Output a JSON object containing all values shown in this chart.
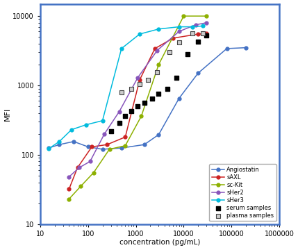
{
  "title": "",
  "xlabel": "concentration (pg/mL)",
  "ylabel": "MFI",
  "xlim": [
    10,
    1000000
  ],
  "ylim": [
    10,
    15000
  ],
  "background_color": "#ffffff",
  "border_color": "#4472C4",
  "curves": {
    "Angiostatin": {
      "color": "#4472C4",
      "marker": "o",
      "x": [
        15,
        25,
        50,
        100,
        200,
        500,
        1500,
        3000,
        8000,
        20000,
        80000,
        200000
      ],
      "y": [
        125,
        140,
        155,
        130,
        120,
        125,
        140,
        195,
        650,
        1500,
        3400,
        3500
      ]
    },
    "sAXL": {
      "color": "#CC2222",
      "marker": "o",
      "x": [
        40,
        60,
        120,
        250,
        600,
        1200,
        2500,
        6000,
        20000,
        30000
      ],
      "y": [
        32,
        65,
        130,
        140,
        180,
        1200,
        3400,
        4800,
        5500,
        5600
      ]
    },
    "sc-Kit": {
      "color": "#8DB000",
      "marker": "o",
      "x": [
        40,
        70,
        130,
        280,
        600,
        1300,
        3000,
        10000,
        30000
      ],
      "y": [
        23,
        35,
        55,
        120,
        135,
        360,
        2000,
        10000,
        10000
      ]
    },
    "sHer2": {
      "color": "#8855BB",
      "marker": "o",
      "x": [
        40,
        65,
        110,
        220,
        450,
        1100,
        2800,
        8000,
        18000,
        30000
      ],
      "y": [
        48,
        65,
        80,
        200,
        420,
        1300,
        3200,
        6000,
        7500,
        8000
      ]
    },
    "sHer3": {
      "color": "#00BBDD",
      "marker": "o",
      "x": [
        15,
        25,
        45,
        90,
        200,
        500,
        1200,
        3000,
        8000,
        15000,
        25000
      ],
      "y": [
        122,
        155,
        230,
        270,
        310,
        3400,
        5500,
        6500,
        7000,
        7000,
        7200
      ]
    }
  },
  "serum_samples": {
    "x": [
      300,
      450,
      600,
      800,
      1100,
      1500,
      2200,
      3000,
      4500,
      7000,
      12000,
      20000,
      30000
    ],
    "y": [
      220,
      290,
      360,
      430,
      500,
      560,
      650,
      750,
      900,
      1300,
      2800,
      4300,
      5200
    ]
  },
  "plasma_samples": {
    "x": [
      500,
      800,
      1200,
      1800,
      2800,
      5000,
      8000,
      15000,
      25000
    ],
    "y": [
      800,
      900,
      1050,
      1200,
      1550,
      3000,
      4200,
      5600,
      5600
    ]
  }
}
